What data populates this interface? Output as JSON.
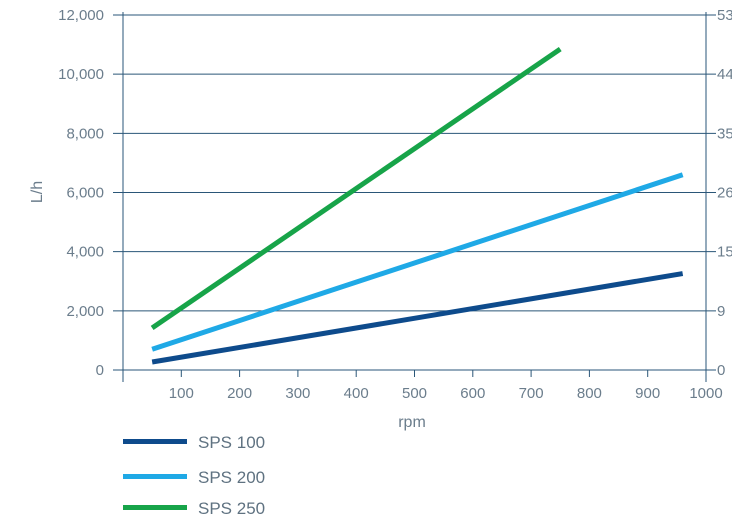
{
  "chart_data": {
    "type": "line",
    "xlabel": "rpm",
    "ylabel": "L/h",
    "x_ticks": [
      100,
      200,
      300,
      400,
      500,
      600,
      700,
      800,
      900,
      1000
    ],
    "y_ticks": [
      0,
      2000,
      4000,
      6000,
      8000,
      10000,
      12000
    ],
    "y_tick_labels": [
      "0",
      "2,000",
      "4,000",
      "6,000",
      "8,000",
      "10,000",
      "12,000"
    ],
    "xlim": [
      0,
      1000
    ],
    "ylim": [
      0,
      12000
    ],
    "y2_tick_labels": [
      "0",
      "9",
      "15",
      "26",
      "35",
      "44",
      "53"
    ],
    "grid": "horizontal",
    "legend_position": "bottom-left",
    "colors": {
      "grid": "#2a5678",
      "text": "#6b7d8c"
    },
    "series": [
      {
        "name": "SPS 100",
        "color": "#0e4b8c",
        "x": [
          50,
          960
        ],
        "y": [
          270,
          3260
        ]
      },
      {
        "name": "SPS 200",
        "color": "#1fa9e6",
        "x": [
          50,
          960
        ],
        "y": [
          700,
          6600
        ]
      },
      {
        "name": "SPS 250",
        "color": "#17a449",
        "x": [
          50,
          750
        ],
        "y": [
          1420,
          10850
        ]
      }
    ]
  }
}
